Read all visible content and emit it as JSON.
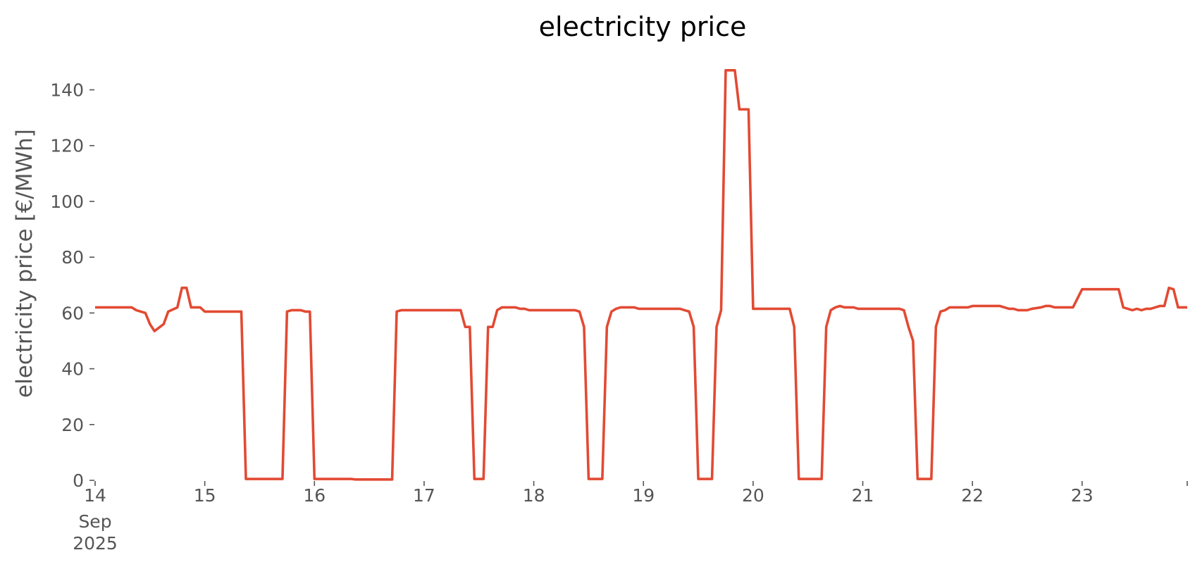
{
  "chart_data": {
    "type": "line",
    "title": "electricity price",
    "xlabel": "",
    "ylabel": "electricity price [€/MWh]",
    "xlim": [
      "2025-09-14 00:00",
      "2025-09-23 23:00"
    ],
    "ylim": [
      0,
      152
    ],
    "grid": false,
    "x_ticks": [
      {
        "x": "2025-09-14",
        "label": "14",
        "sublabel": [
          "Sep",
          "2025"
        ]
      },
      {
        "x": "2025-09-15",
        "label": "15"
      },
      {
        "x": "2025-09-16",
        "label": "16"
      },
      {
        "x": "2025-09-17",
        "label": "17"
      },
      {
        "x": "2025-09-18",
        "label": "18"
      },
      {
        "x": "2025-09-19",
        "label": "19"
      },
      {
        "x": "2025-09-20",
        "label": "20"
      },
      {
        "x": "2025-09-21",
        "label": "21"
      },
      {
        "x": "2025-09-22",
        "label": "22"
      },
      {
        "x": "2025-09-23",
        "label": "23"
      },
      {
        "x": "2025-09-24",
        "label": ""
      }
    ],
    "y_ticks": [
      0,
      20,
      40,
      60,
      80,
      100,
      120,
      140
    ],
    "series": [
      {
        "color": "#e24a33",
        "points": [
          [
            "2025-09-14 00:00",
            62.0
          ],
          [
            "2025-09-14 08:00",
            62.0
          ],
          [
            "2025-09-14 09:00",
            61.0
          ],
          [
            "2025-09-14 11:00",
            60.0
          ],
          [
            "2025-09-14 12:00",
            56.0
          ],
          [
            "2025-09-14 13:00",
            53.5
          ],
          [
            "2025-09-14 15:00",
            56.0
          ],
          [
            "2025-09-14 16:00",
            60.5
          ],
          [
            "2025-09-14 18:00",
            62.0
          ],
          [
            "2025-09-14 19:00",
            69.0
          ],
          [
            "2025-09-14 20:00",
            69.0
          ],
          [
            "2025-09-14 21:00",
            62.0
          ],
          [
            "2025-09-14 23:00",
            62.0
          ],
          [
            "2025-09-15 00:00",
            60.5
          ],
          [
            "2025-09-15 08:00",
            60.5
          ],
          [
            "2025-09-15 09:00",
            0.5
          ],
          [
            "2025-09-15 17:00",
            0.5
          ],
          [
            "2025-09-15 18:00",
            60.5
          ],
          [
            "2025-09-15 19:00",
            61.0
          ],
          [
            "2025-09-15 21:00",
            61.0
          ],
          [
            "2025-09-15 22:00",
            60.5
          ],
          [
            "2025-09-15 23:00",
            60.5
          ],
          [
            "2025-09-16 00:00",
            0.5
          ],
          [
            "2025-09-16 08:00",
            0.5
          ],
          [
            "2025-09-16 09:00",
            0.3
          ],
          [
            "2025-09-16 17:00",
            0.3
          ],
          [
            "2025-09-16 18:00",
            60.5
          ],
          [
            "2025-09-16 19:00",
            61.0
          ],
          [
            "2025-09-17 08:00",
            61.0
          ],
          [
            "2025-09-17 09:00",
            55.0
          ],
          [
            "2025-09-17 10:00",
            55.0
          ],
          [
            "2025-09-17 11:00",
            0.5
          ],
          [
            "2025-09-17 13:00",
            0.5
          ],
          [
            "2025-09-17 14:00",
            55.0
          ],
          [
            "2025-09-17 15:00",
            55.0
          ],
          [
            "2025-09-17 16:00",
            61.0
          ],
          [
            "2025-09-17 17:00",
            62.0
          ],
          [
            "2025-09-17 20:00",
            62.0
          ],
          [
            "2025-09-17 21:00",
            61.5
          ],
          [
            "2025-09-17 22:00",
            61.5
          ],
          [
            "2025-09-17 23:00",
            61.0
          ],
          [
            "2025-09-18 09:00",
            61.0
          ],
          [
            "2025-09-18 10:00",
            60.5
          ],
          [
            "2025-09-18 11:00",
            55.0
          ],
          [
            "2025-09-18 12:00",
            0.5
          ],
          [
            "2025-09-18 15:00",
            0.5
          ],
          [
            "2025-09-18 16:00",
            55.0
          ],
          [
            "2025-09-18 17:00",
            60.5
          ],
          [
            "2025-09-18 18:00",
            61.5
          ],
          [
            "2025-09-18 19:00",
            62.0
          ],
          [
            "2025-09-18 22:00",
            62.0
          ],
          [
            "2025-09-18 23:00",
            61.5
          ],
          [
            "2025-09-19 08:00",
            61.5
          ],
          [
            "2025-09-19 09:00",
            61.0
          ],
          [
            "2025-09-19 10:00",
            60.5
          ],
          [
            "2025-09-19 11:00",
            55.0
          ],
          [
            "2025-09-19 12:00",
            0.5
          ],
          [
            "2025-09-19 15:00",
            0.5
          ],
          [
            "2025-09-19 16:00",
            55.0
          ],
          [
            "2025-09-19 17:00",
            61.0
          ],
          [
            "2025-09-19 18:00",
            147.0
          ],
          [
            "2025-09-19 20:00",
            147.0
          ],
          [
            "2025-09-19 21:00",
            133.0
          ],
          [
            "2025-09-19 23:00",
            133.0
          ],
          [
            "2025-09-20 00:00",
            61.5
          ],
          [
            "2025-09-20 08:00",
            61.5
          ],
          [
            "2025-09-20 09:00",
            55.0
          ],
          [
            "2025-09-20 10:00",
            0.5
          ],
          [
            "2025-09-20 15:00",
            0.5
          ],
          [
            "2025-09-20 16:00",
            55.0
          ],
          [
            "2025-09-20 17:00",
            61.0
          ],
          [
            "2025-09-20 18:00",
            62.0
          ],
          [
            "2025-09-20 19:00",
            62.5
          ],
          [
            "2025-09-20 20:00",
            62.0
          ],
          [
            "2025-09-20 22:00",
            62.0
          ],
          [
            "2025-09-20 23:00",
            61.5
          ],
          [
            "2025-09-21 08:00",
            61.5
          ],
          [
            "2025-09-21 09:00",
            61.0
          ],
          [
            "2025-09-21 10:00",
            55.0
          ],
          [
            "2025-09-21 11:00",
            50.0
          ],
          [
            "2025-09-21 12:00",
            0.5
          ],
          [
            "2025-09-21 15:00",
            0.5
          ],
          [
            "2025-09-21 16:00",
            55.0
          ],
          [
            "2025-09-21 17:00",
            60.5
          ],
          [
            "2025-09-21 18:00",
            61.0
          ],
          [
            "2025-09-21 19:00",
            62.0
          ],
          [
            "2025-09-21 23:00",
            62.0
          ],
          [
            "2025-09-22 00:00",
            62.5
          ],
          [
            "2025-09-22 06:00",
            62.5
          ],
          [
            "2025-09-22 07:00",
            62.0
          ],
          [
            "2025-09-22 08:00",
            61.5
          ],
          [
            "2025-09-22 09:00",
            61.5
          ],
          [
            "2025-09-22 10:00",
            61.0
          ],
          [
            "2025-09-22 12:00",
            61.0
          ],
          [
            "2025-09-22 13:00",
            61.5
          ],
          [
            "2025-09-22 15:00",
            62.0
          ],
          [
            "2025-09-22 16:00",
            62.5
          ],
          [
            "2025-09-22 17:00",
            62.5
          ],
          [
            "2025-09-22 18:00",
            62.0
          ],
          [
            "2025-09-22 21:00",
            62.0
          ],
          [
            "2025-09-22 22:00",
            62.0
          ],
          [
            "2025-09-23 00:00",
            68.5
          ],
          [
            "2025-09-23 08:00",
            68.5
          ],
          [
            "2025-09-23 09:00",
            62.0
          ],
          [
            "2025-09-23 10:00",
            61.5
          ],
          [
            "2025-09-23 11:00",
            61.0
          ],
          [
            "2025-09-23 12:00",
            61.5
          ],
          [
            "2025-09-23 13:00",
            61.0
          ],
          [
            "2025-09-23 14:00",
            61.5
          ],
          [
            "2025-09-23 15:00",
            61.5
          ],
          [
            "2025-09-23 16:00",
            62.0
          ],
          [
            "2025-09-23 17:00",
            62.5
          ],
          [
            "2025-09-23 18:00",
            62.5
          ],
          [
            "2025-09-23 19:00",
            69.0
          ],
          [
            "2025-09-23 20:00",
            68.5
          ],
          [
            "2025-09-23 21:00",
            62.0
          ],
          [
            "2025-09-23 23:00",
            62.0
          ]
        ]
      }
    ]
  }
}
